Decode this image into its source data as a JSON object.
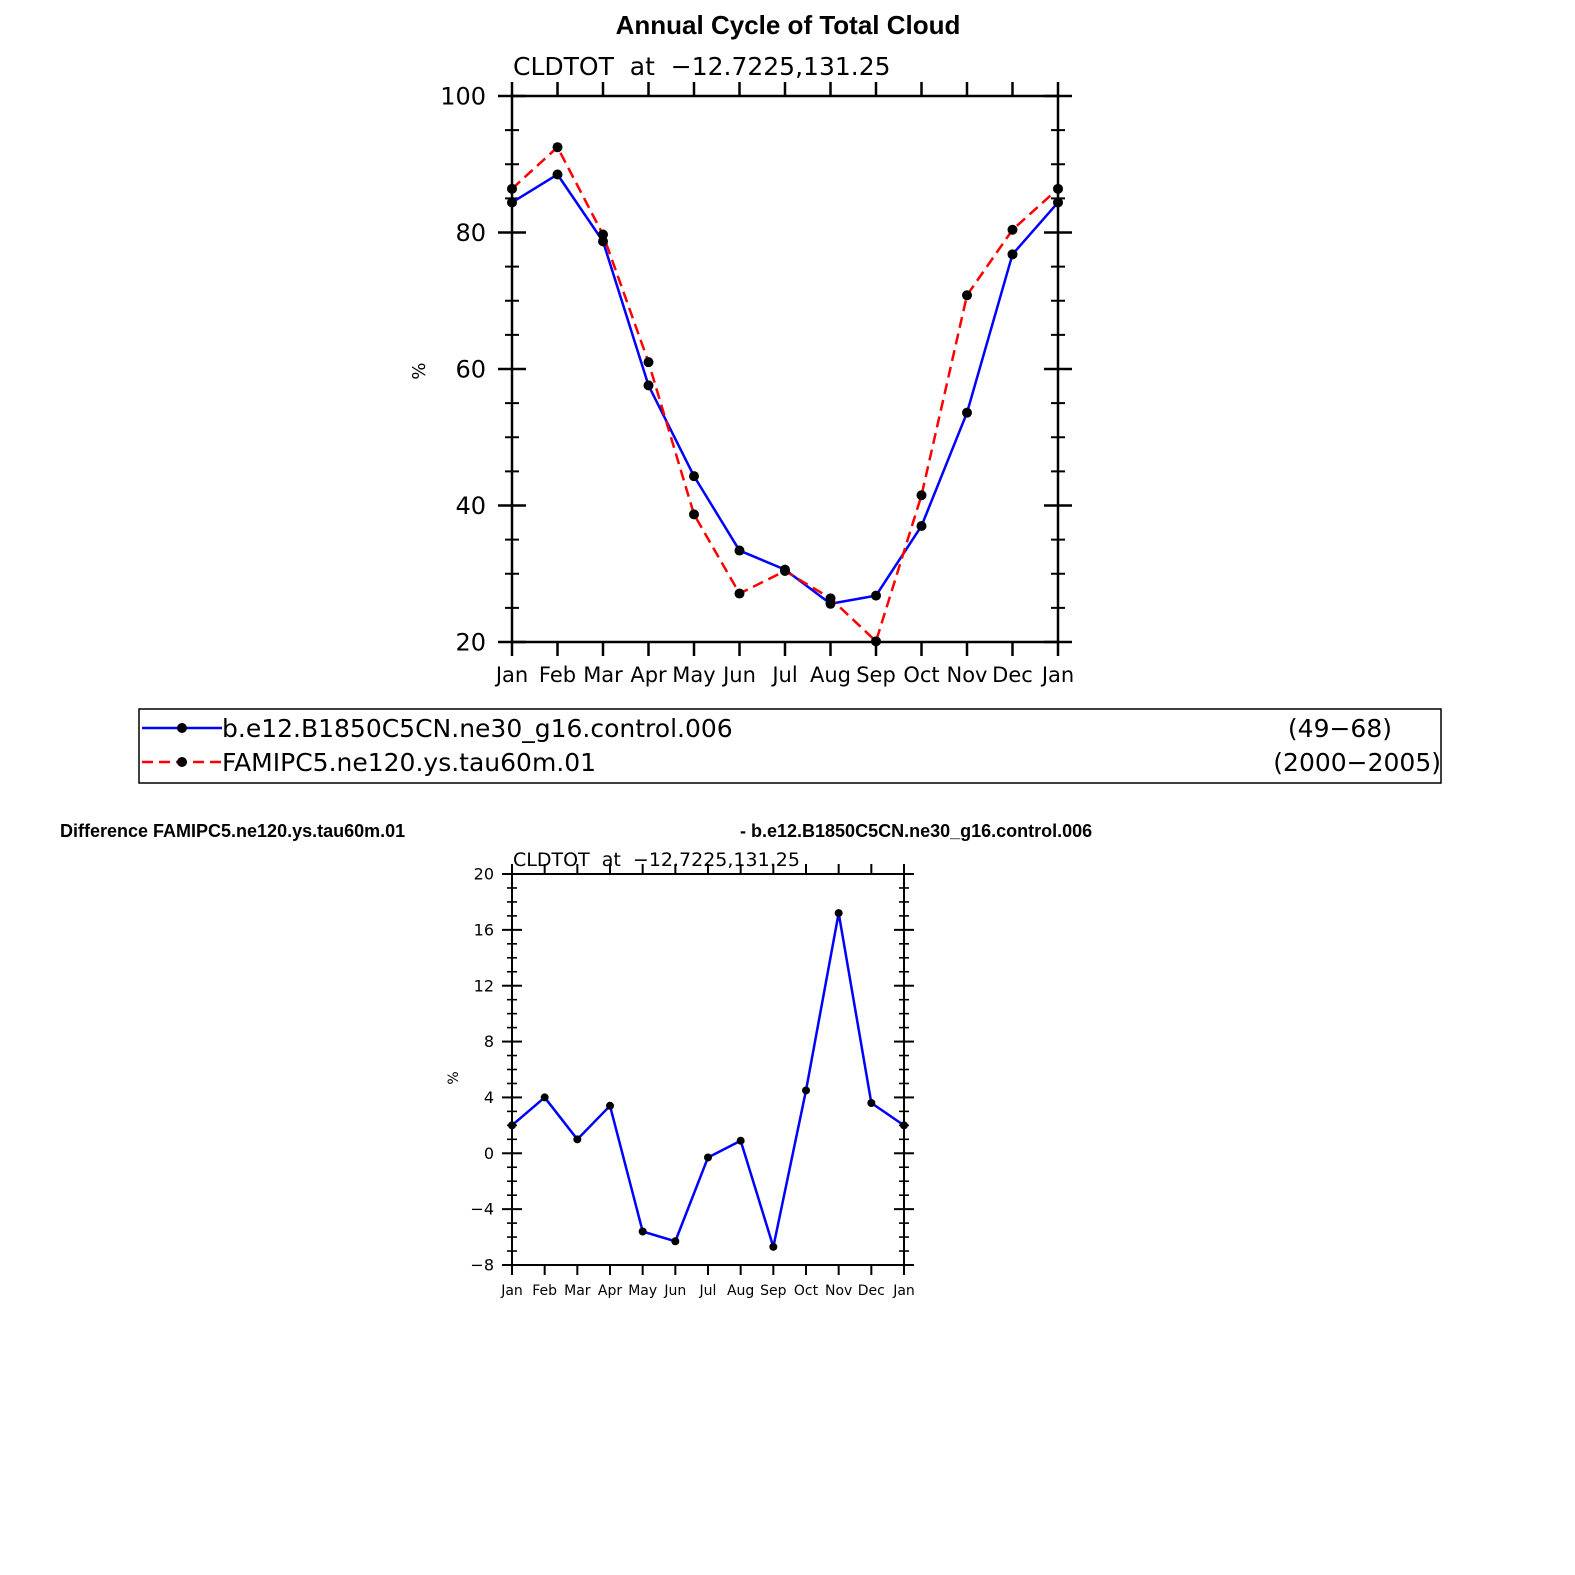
{
  "figure_title": "Annual Cycle of Total Cloud",
  "difference_title_left": "Difference FAMIPC5.ne120.ys.tau60m.01",
  "difference_title_right": "- b.e12.B1850C5CN.ne30_g16.control.006",
  "colors": {
    "series1": "#0000ff",
    "series2": "#ff0000",
    "marker": "#000000",
    "axis": "#000000"
  },
  "chart_data": [
    {
      "type": "line",
      "name": "annual-cycle",
      "subtitle": "CLDTOT  at  −12.7225,131.25",
      "ylabel": "%",
      "xlabel": "",
      "categories": [
        "Jan",
        "Feb",
        "Mar",
        "Apr",
        "May",
        "Jun",
        "Jul",
        "Aug",
        "Sep",
        "Oct",
        "Nov",
        "Dec",
        "Jan"
      ],
      "ylim": [
        20,
        100
      ],
      "yticks": [
        "20",
        "40",
        "60",
        "80",
        "100"
      ],
      "ytick_values": [
        20,
        40,
        60,
        80,
        100
      ],
      "series": [
        {
          "name": "b.e12.B1850C5CN.ne30_g16.control.006",
          "years": "(49−68)",
          "style": "solid",
          "values": [
            84.4,
            88.5,
            78.7,
            57.6,
            44.3,
            33.4,
            30.6,
            25.6,
            26.8,
            37.0,
            53.6,
            76.8,
            84.4
          ]
        },
        {
          "name": "FAMIPC5.ne120.ys.tau60m.01",
          "years": "(2000−2005)",
          "style": "dashed",
          "values": [
            86.4,
            92.5,
            79.7,
            61.0,
            38.7,
            27.1,
            30.4,
            26.4,
            20.1,
            41.5,
            70.8,
            80.4,
            86.4
          ]
        }
      ]
    },
    {
      "type": "line",
      "name": "difference",
      "subtitle": "CLDTOT  at  −12.7225,131.25",
      "ylabel": "%",
      "xlabel": "",
      "categories": [
        "Jan",
        "Feb",
        "Mar",
        "Apr",
        "May",
        "Jun",
        "Jul",
        "Aug",
        "Sep",
        "Oct",
        "Nov",
        "Dec",
        "Jan"
      ],
      "ylim": [
        -8,
        20
      ],
      "yticks": [
        "−8",
        "−4",
        "0",
        "4",
        "8",
        "12",
        "16",
        "20"
      ],
      "ytick_values": [
        -8,
        -4,
        0,
        4,
        8,
        12,
        16,
        20
      ],
      "series": [
        {
          "name": "difference",
          "style": "solid",
          "values": [
            2.0,
            4.0,
            1.0,
            3.4,
            -5.6,
            -6.3,
            -0.3,
            0.9,
            -6.7,
            4.5,
            17.2,
            3.6,
            2.0
          ]
        }
      ]
    }
  ]
}
